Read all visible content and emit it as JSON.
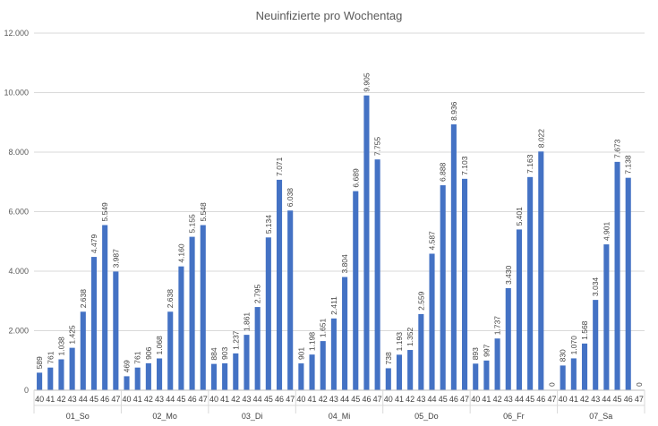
{
  "chart_data": {
    "type": "bar",
    "title": "Neuinfizierte pro Wochentag",
    "xlabel": "",
    "ylabel": "",
    "ylim": [
      0,
      12000
    ],
    "yticks": [
      0,
      2000,
      4000,
      6000,
      8000,
      10000,
      12000
    ],
    "ytick_labels": [
      "0",
      "2.000",
      "4.000",
      "6.000",
      "8.000",
      "10.000",
      "12.000"
    ],
    "grid": true,
    "legend": "none",
    "bar_color": "#4472C4",
    "groups": [
      {
        "name": "01_So",
        "weeks": [
          "40",
          "41",
          "42",
          "43",
          "44",
          "45",
          "46",
          "47"
        ],
        "values": [
          589,
          761,
          1038,
          1425,
          2638,
          4479,
          5549,
          3987
        ],
        "labels": [
          "589",
          "761",
          "1.038",
          "1.425",
          "2.638",
          "4.479",
          "5.549",
          "3.987"
        ]
      },
      {
        "name": "02_Mo",
        "weeks": [
          "40",
          "41",
          "42",
          "43",
          "44",
          "45",
          "46",
          "47"
        ],
        "values": [
          469,
          761,
          906,
          1068,
          2638,
          4160,
          5155,
          5548
        ],
        "labels": [
          "469",
          "761",
          "906",
          "1.068",
          "2.638",
          "4.160",
          "5.155",
          "5.548"
        ]
      },
      {
        "name": "03_Di",
        "weeks": [
          "40",
          "41",
          "42",
          "43",
          "44",
          "45",
          "46",
          "47"
        ],
        "values": [
          884,
          903,
          1237,
          1861,
          2795,
          5134,
          7071,
          6038
        ],
        "labels": [
          "884",
          "903",
          "1.237",
          "1.861",
          "2.795",
          "5.134",
          "7.071",
          "6.038"
        ]
      },
      {
        "name": "04_Mi",
        "weeks": [
          "40",
          "41",
          "42",
          "43",
          "44",
          "45",
          "46",
          "47"
        ],
        "values": [
          901,
          1198,
          1651,
          2411,
          3804,
          6689,
          9905,
          7755
        ],
        "labels": [
          "901",
          "1.198",
          "1.651",
          "2.411",
          "3.804",
          "6.689",
          "9.905",
          "7.755"
        ]
      },
      {
        "name": "05_Do",
        "weeks": [
          "40",
          "41",
          "42",
          "43",
          "44",
          "45",
          "46",
          "47"
        ],
        "values": [
          738,
          1193,
          1352,
          2559,
          4587,
          6888,
          8936,
          7103
        ],
        "labels": [
          "738",
          "1.193",
          "1.352",
          "2.559",
          "4.587",
          "6.888",
          "8.936",
          "7.103"
        ]
      },
      {
        "name": "06_Fr",
        "weeks": [
          "40",
          "41",
          "42",
          "43",
          "44",
          "45",
          "46",
          "47"
        ],
        "values": [
          893,
          997,
          1737,
          3430,
          5401,
          7163,
          8022,
          0
        ],
        "labels": [
          "893",
          "997",
          "1.737",
          "3.430",
          "5.401",
          "7.163",
          "8.022",
          "0"
        ]
      },
      {
        "name": "07_Sa",
        "weeks": [
          "40",
          "41",
          "42",
          "43",
          "44",
          "45",
          "46",
          "47"
        ],
        "values": [
          830,
          1070,
          1568,
          3034,
          4901,
          7673,
          7138,
          0
        ],
        "labels": [
          "830",
          "1.070",
          "1.568",
          "3.034",
          "4.901",
          "7.673",
          "7.138",
          "0"
        ]
      }
    ]
  }
}
